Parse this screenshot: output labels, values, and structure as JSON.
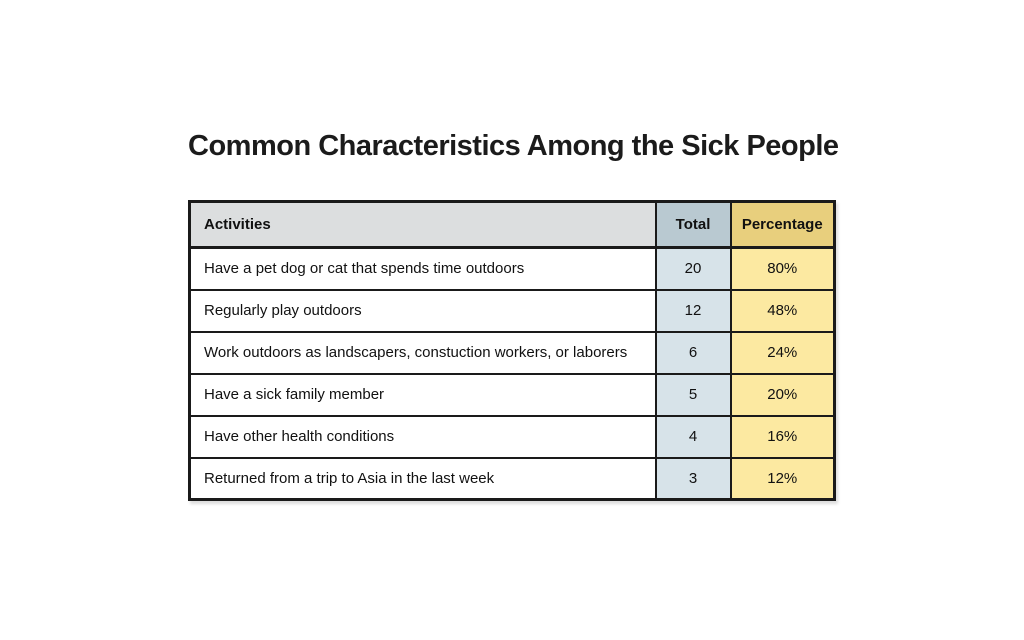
{
  "title": "Common Characteristics Among the Sick People",
  "colors": {
    "border": "#1a1a1a",
    "header_gray": "#dcdedf",
    "header_blue": "#b9c9d1",
    "header_gold": "#e8cf7d",
    "body_blue": "#d7e3e9",
    "body_yellow": "#fce9a1"
  },
  "table": {
    "columns": [
      {
        "label": "Activities"
      },
      {
        "label": "Total"
      },
      {
        "label": "Percentage"
      }
    ],
    "rows": [
      {
        "activity": "Have a pet dog or cat that spends time outdoors",
        "total": "20",
        "percentage": "80%"
      },
      {
        "activity": "Regularly play outdoors",
        "total": "12",
        "percentage": "48%"
      },
      {
        "activity": "Work outdoors as landscapers, constuction workers, or laborers",
        "total": "6",
        "percentage": "24%"
      },
      {
        "activity": "Have a sick family member",
        "total": "5",
        "percentage": "20%"
      },
      {
        "activity": "Have other health conditions",
        "total": "4",
        "percentage": "16%"
      },
      {
        "activity": "Returned from a trip to Asia in the last week",
        "total": "3",
        "percentage": "12%"
      }
    ]
  },
  "chart_data": {
    "type": "table",
    "title": "Common Characteristics Among the Sick People",
    "columns": [
      "Activities",
      "Total",
      "Percentage"
    ],
    "rows": [
      [
        "Have a pet dog or cat that spends time outdoors",
        20,
        "80%"
      ],
      [
        "Regularly play outdoors",
        12,
        "48%"
      ],
      [
        "Work outdoors as landscapers, constuction workers, or laborers",
        6,
        "24%"
      ],
      [
        "Have a sick family member",
        5,
        "20%"
      ],
      [
        "Have other health conditions",
        4,
        "16%"
      ],
      [
        "Returned from a trip to Asia in the last week",
        3,
        "12%"
      ]
    ]
  }
}
